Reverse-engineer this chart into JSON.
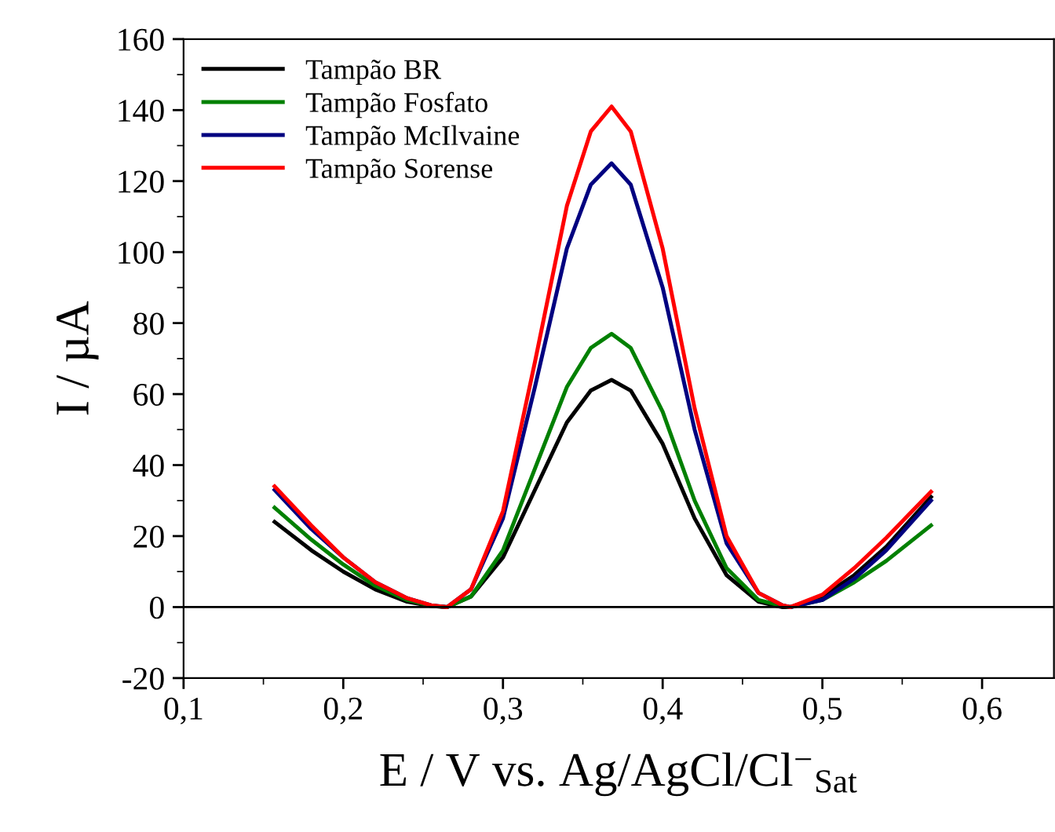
{
  "chart_data": {
    "type": "line",
    "xlabel": "E / V vs. Ag/AgCl/Cl$^{−}$$_{Sat}$",
    "ylabel": "I / µA",
    "x": [
      0.157,
      0.18,
      0.2,
      0.22,
      0.24,
      0.255,
      0.265,
      0.28,
      0.3,
      0.32,
      0.34,
      0.355,
      0.368,
      0.38,
      0.4,
      0.42,
      0.44,
      0.46,
      0.475,
      0.48,
      0.5,
      0.52,
      0.54,
      0.568
    ],
    "series": [
      {
        "name": "Tampão BR",
        "color": "#000000",
        "values": [
          24,
          16,
          10,
          5,
          1.5,
          0.3,
          0,
          3,
          14,
          33,
          52,
          61,
          64,
          61,
          46,
          25,
          9,
          1.5,
          0,
          0,
          3,
          9,
          17,
          31
        ]
      },
      {
        "name": "Tampão Fosfato",
        "color": "#008000",
        "values": [
          28,
          19,
          12,
          6,
          2,
          0.4,
          0,
          3,
          16,
          39,
          62,
          73,
          77,
          73,
          55,
          30,
          11,
          2,
          0.3,
          0,
          2,
          7,
          13,
          23
        ]
      },
      {
        "name": "Tampão McIlvaine",
        "color": "#000080",
        "values": [
          33,
          22,
          14,
          7,
          2.5,
          0.5,
          0,
          5,
          25,
          62,
          101,
          119,
          125,
          119,
          90,
          50,
          18,
          4,
          0.5,
          0,
          2,
          8,
          16,
          30
        ]
      },
      {
        "name": "Tampão Sorense",
        "color": "#ff0000",
        "values": [
          34,
          23,
          14,
          7,
          2.5,
          0.5,
          0,
          5,
          27,
          69,
          113,
          134,
          141,
          134,
          101,
          56,
          20,
          4,
          0.5,
          0,
          3.5,
          11,
          19.5,
          32.5
        ]
      }
    ],
    "xlim": [
      0.1,
      0.645
    ],
    "xticks": [
      {
        "value": 0.1,
        "label": "0,1"
      },
      {
        "value": 0.2,
        "label": "0,2"
      },
      {
        "value": 0.3,
        "label": "0,3"
      },
      {
        "value": 0.4,
        "label": "0,4"
      },
      {
        "value": 0.5,
        "label": "0,5"
      },
      {
        "value": 0.6,
        "label": "0,6"
      }
    ],
    "ylim": [
      -20,
      160
    ],
    "yticks": [
      {
        "value": -20,
        "label": "-20"
      },
      0,
      20,
      40,
      60,
      80,
      100,
      120,
      140,
      160
    ],
    "ref_lines": [
      {
        "axis": "y",
        "value": 0,
        "color": "#000000"
      }
    ],
    "legend": "top left",
    "grid": false,
    "marker": "none",
    "line_style": "solid"
  }
}
